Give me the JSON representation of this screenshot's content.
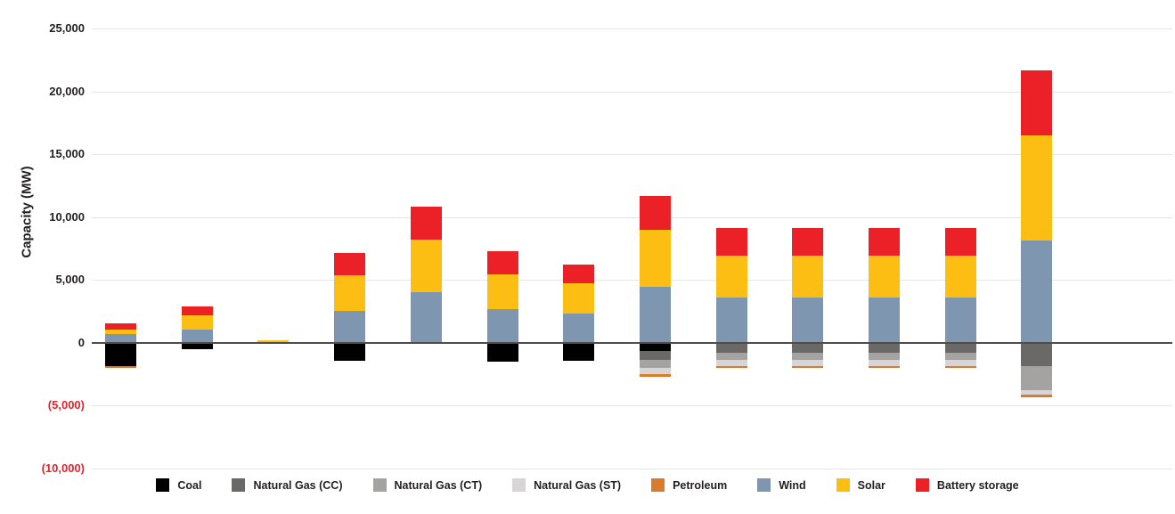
{
  "chart": {
    "ylabel": "Capacity (MW)"
  },
  "chart_data": {
    "type": "bar",
    "stacked": true,
    "title": "",
    "ylabel": "Capacity (MW)",
    "ylim": [
      -10000,
      25000
    ],
    "y_ticks": [
      25000,
      20000,
      15000,
      10000,
      5000,
      0,
      -5000,
      -10000
    ],
    "y_tick_labels": [
      "25,000",
      "20,000",
      "15,000",
      "10,000",
      "5,000",
      "0",
      "(5,000)",
      "(10,000)"
    ],
    "tick_color_positive": "#231f20",
    "tick_color_negative": "#e8212a",
    "x_axis_labels_visible": false,
    "grid": true,
    "legend_position": "bottom",
    "bar_count": 13,
    "series": [
      {
        "key": "coal",
        "name": "Coal",
        "color": "#000000",
        "values": [
          -1850,
          -500,
          0,
          -1450,
          0,
          -1500,
          -1450,
          -650,
          0,
          0,
          0,
          0,
          0
        ]
      },
      {
        "key": "natural-gas-cc",
        "name": "Natural Gas (CC)",
        "color": "#6b6868",
        "values": [
          0,
          0,
          0,
          0,
          0,
          0,
          0,
          -700,
          -850,
          -850,
          -850,
          -850,
          -1850
        ]
      },
      {
        "key": "natural-gas-ct",
        "name": "Natural Gas (CT)",
        "color": "#a5a2a2",
        "values": [
          0,
          0,
          0,
          0,
          0,
          0,
          0,
          -650,
          -550,
          -550,
          -550,
          -550,
          -1950
        ]
      },
      {
        "key": "natural-gas-st",
        "name": "Natural Gas (ST)",
        "color": "#d7d5d5",
        "values": [
          0,
          0,
          0,
          0,
          0,
          0,
          0,
          -550,
          -500,
          -500,
          -500,
          -500,
          -350
        ]
      },
      {
        "key": "petroleum",
        "name": "Petroleum",
        "color": "#d87b2c",
        "values": [
          -200,
          0,
          0,
          0,
          0,
          0,
          0,
          -150,
          -150,
          -150,
          -150,
          -150,
          -200
        ]
      },
      {
        "key": "wind",
        "name": "Wind",
        "color": "#7f96b1",
        "values": [
          650,
          1000,
          0,
          2500,
          4000,
          2650,
          2300,
          4400,
          3550,
          3550,
          3550,
          3550,
          8150
        ]
      },
      {
        "key": "solar",
        "name": "Solar",
        "color": "#fcbe12",
        "values": [
          400,
          1150,
          200,
          2850,
          4200,
          2800,
          2450,
          4550,
          3350,
          3350,
          3350,
          3350,
          8350
        ]
      },
      {
        "key": "battery-storage",
        "name": "Battery storage",
        "color": "#ec2127",
        "values": [
          500,
          700,
          0,
          1800,
          2600,
          1800,
          1450,
          2700,
          2200,
          2200,
          2200,
          2200,
          5200
        ]
      }
    ]
  }
}
